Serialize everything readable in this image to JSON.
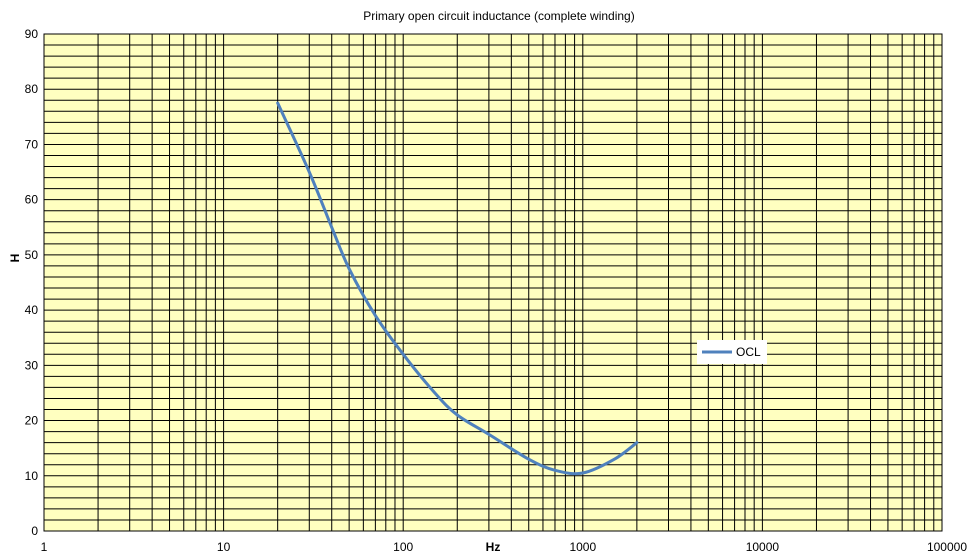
{
  "chart_data": {
    "type": "line",
    "title": "Primary open circuit inductance (complete winding)",
    "xlabel": "Hz",
    "ylabel": "H",
    "x_scale": "log",
    "xlim": [
      1,
      100000
    ],
    "ylim": [
      0,
      90
    ],
    "x_ticks": [
      "1",
      "10",
      "100",
      "1000",
      "10000",
      "100000"
    ],
    "y_ticks": [
      "0",
      "10",
      "20",
      "30",
      "40",
      "50",
      "60",
      "70",
      "80",
      "90"
    ],
    "grid": true,
    "legend_position": "right",
    "plot_background": "#ffffc0",
    "grid_color": "#000000",
    "series": [
      {
        "name": "OCL",
        "color": "#4f81bd",
        "x": [
          20,
          30,
          40,
          50,
          70,
          100,
          150,
          200,
          300,
          500,
          700,
          1000,
          1500,
          2000
        ],
        "y": [
          77.5,
          65,
          55,
          47.5,
          39,
          32,
          25,
          21,
          17.5,
          13,
          11,
          10.5,
          13,
          16
        ]
      }
    ]
  }
}
